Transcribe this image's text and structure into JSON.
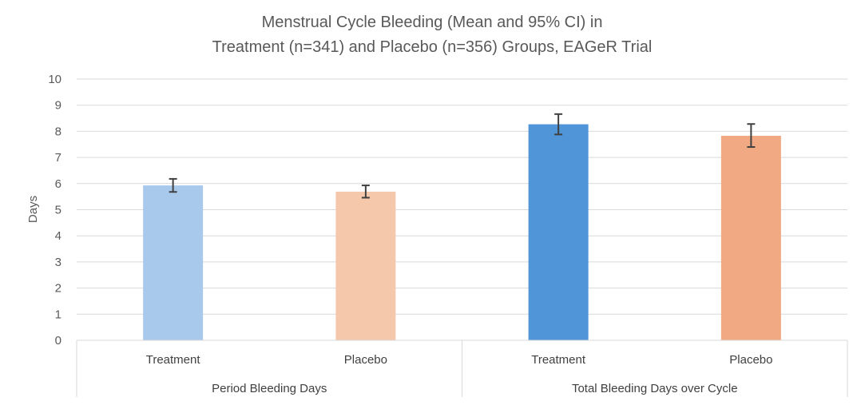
{
  "chart_data": {
    "type": "bar",
    "title_lines": [
      "Menstrual Cycle Bleeding (Mean and 95% CI) in",
      "Treatment (n=341) and Placebo (n=356) Groups, EAGeR Trial"
    ],
    "ylabel": "Days",
    "ylim": [
      0,
      10
    ],
    "yticks": [
      "0",
      "1",
      "2",
      "3",
      "4",
      "5",
      "6",
      "7",
      "8",
      "9",
      "10"
    ],
    "grid": true,
    "groups": [
      {
        "label": "Period Bleeding Days",
        "bars": [
          {
            "category": "Treatment",
            "value": 5.93,
            "ci_low": 5.68,
            "ci_high": 6.18,
            "color": "#a9c9ec"
          },
          {
            "category": "Placebo",
            "value": 5.69,
            "ci_low": 5.46,
            "ci_high": 5.93,
            "color": "#f5c7ab"
          }
        ]
      },
      {
        "label": "Total Bleeding Days over Cycle",
        "bars": [
          {
            "category": "Treatment",
            "value": 8.27,
            "ci_low": 7.88,
            "ci_high": 8.66,
            "color": "#4f95d8"
          },
          {
            "category": "Placebo",
            "value": 7.83,
            "ci_low": 7.4,
            "ci_high": 8.28,
            "color": "#f0a983"
          }
        ]
      }
    ]
  }
}
